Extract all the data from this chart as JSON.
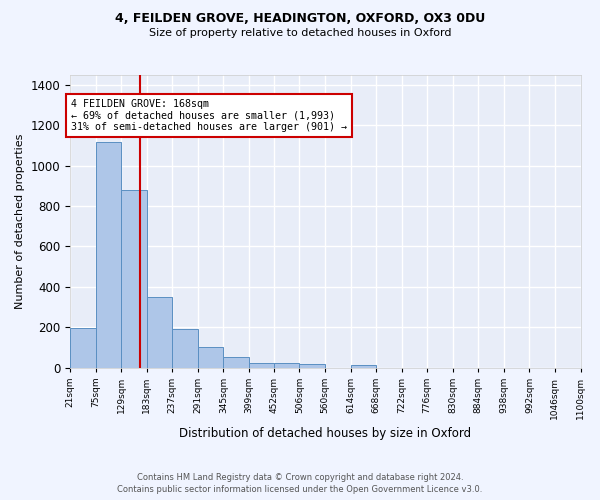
{
  "title_line1": "4, FEILDEN GROVE, HEADINGTON, OXFORD, OX3 0DU",
  "title_line2": "Size of property relative to detached houses in Oxford",
  "xlabel": "Distribution of detached houses by size in Oxford",
  "ylabel": "Number of detached properties",
  "bin_edges": [
    21,
    75,
    129,
    183,
    237,
    291,
    345,
    399,
    452,
    506,
    560,
    614,
    668,
    722,
    776,
    830,
    884,
    938,
    992,
    1046,
    1100
  ],
  "bar_heights": [
    195,
    1120,
    880,
    350,
    190,
    100,
    52,
    22,
    22,
    18,
    0,
    12,
    0,
    0,
    0,
    0,
    0,
    0,
    0,
    0
  ],
  "bar_color": "#aec6e8",
  "bar_edge_color": "#5a8fc2",
  "background_color": "#e8edf8",
  "grid_color": "#ffffff",
  "vline_x": 168,
  "vline_color": "#cc0000",
  "annotation_text": "4 FEILDEN GROVE: 168sqm\n← 69% of detached houses are smaller (1,993)\n31% of semi-detached houses are larger (901) →",
  "annotation_box_color": "#ffffff",
  "annotation_text_color": "#000000",
  "annotation_edge_color": "#cc0000",
  "ylim": [
    0,
    1450
  ],
  "footer_line1": "Contains HM Land Registry data © Crown copyright and database right 2024.",
  "footer_line2": "Contains public sector information licensed under the Open Government Licence v3.0."
}
